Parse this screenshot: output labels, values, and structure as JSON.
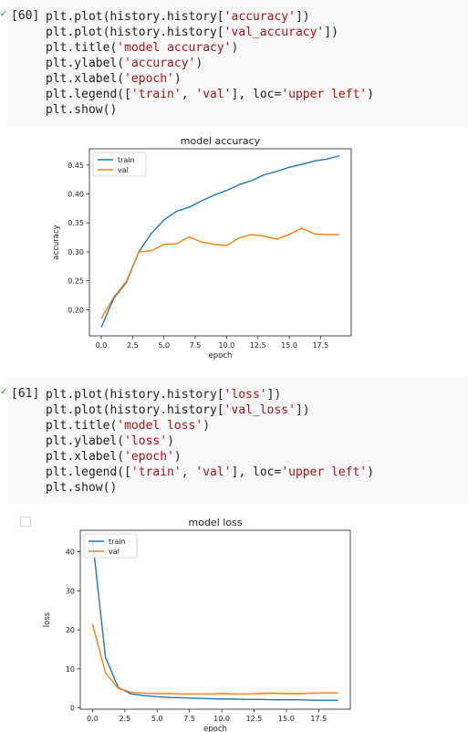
{
  "cells": [
    {
      "prompt": "[60]",
      "code_lines": [
        [
          {
            "t": "plt.plot(history.history["
          },
          {
            "t": "'accuracy'",
            "s": 1
          },
          {
            "t": "])"
          }
        ],
        [
          {
            "t": "plt.plot(history.history["
          },
          {
            "t": "'val_accuracy'",
            "s": 1
          },
          {
            "t": "])"
          }
        ],
        [
          {
            "t": "plt.title("
          },
          {
            "t": "'model accuracy'",
            "s": 1
          },
          {
            "t": ")"
          }
        ],
        [
          {
            "t": "plt.ylabel("
          },
          {
            "t": "'accuracy'",
            "s": 1
          },
          {
            "t": ")"
          }
        ],
        [
          {
            "t": "plt.xlabel("
          },
          {
            "t": "'epoch'",
            "s": 1
          },
          {
            "t": ")"
          }
        ],
        [
          {
            "t": "plt.legend(["
          },
          {
            "t": "'train'",
            "s": 1
          },
          {
            "t": ", "
          },
          {
            "t": "'val'",
            "s": 1
          },
          {
            "t": "], loc="
          },
          {
            "t": "'upper left'",
            "s": 1
          },
          {
            "t": ")"
          }
        ],
        [
          {
            "t": "plt.show()"
          }
        ]
      ]
    },
    {
      "prompt": "[61]",
      "code_lines": [
        [
          {
            "t": "plt.plot(history.history["
          },
          {
            "t": "'loss'",
            "s": 1
          },
          {
            "t": "])"
          }
        ],
        [
          {
            "t": "plt.plot(history.history["
          },
          {
            "t": "'val_loss'",
            "s": 1
          },
          {
            "t": "])"
          }
        ],
        [
          {
            "t": "plt.title("
          },
          {
            "t": "'model loss'",
            "s": 1
          },
          {
            "t": ")"
          }
        ],
        [
          {
            "t": "plt.ylabel("
          },
          {
            "t": "'loss'",
            "s": 1
          },
          {
            "t": ")"
          }
        ],
        [
          {
            "t": "plt.xlabel("
          },
          {
            "t": "'epoch'",
            "s": 1
          },
          {
            "t": ")"
          }
        ],
        [
          {
            "t": "plt.legend(["
          },
          {
            "t": "'train'",
            "s": 1
          },
          {
            "t": ", "
          },
          {
            "t": "'val'",
            "s": 1
          },
          {
            "t": "], loc="
          },
          {
            "t": "'upper left'",
            "s": 1
          },
          {
            "t": ")"
          }
        ],
        [
          {
            "t": "plt.show()"
          }
        ]
      ]
    }
  ],
  "chart_data": [
    {
      "type": "line",
      "title": "model accuracy",
      "xlabel": "epoch",
      "ylabel": "accuracy",
      "xlim": [
        -0.95,
        19.95
      ],
      "ylim": [
        0.155,
        0.478
      ],
      "xticks": [
        0.0,
        2.5,
        5.0,
        7.5,
        10.0,
        12.5,
        15.0,
        17.5
      ],
      "xtick_labels": [
        "0.0",
        "2.5",
        "5.0",
        "7.5",
        "10.0",
        "12.5",
        "15.0",
        "17.5"
      ],
      "yticks": [
        0.2,
        0.25,
        0.3,
        0.35,
        0.4,
        0.45
      ],
      "ytick_labels": [
        "0.20",
        "0.25",
        "0.30",
        "0.35",
        "0.40",
        "0.45"
      ],
      "x": [
        0,
        1,
        2,
        3,
        4,
        5,
        6,
        7,
        8,
        9,
        10,
        11,
        12,
        13,
        14,
        15,
        16,
        17,
        18,
        19
      ],
      "series": [
        {
          "name": "train",
          "color": "#1f77b4",
          "values": [
            0.17,
            0.22,
            0.247,
            0.3,
            0.332,
            0.355,
            0.37,
            0.377,
            0.388,
            0.398,
            0.406,
            0.416,
            0.423,
            0.433,
            0.439,
            0.446,
            0.451,
            0.457,
            0.46,
            0.466
          ]
        },
        {
          "name": "val",
          "color": "#ff7f0e",
          "values": [
            0.185,
            0.222,
            0.249,
            0.3,
            0.302,
            0.313,
            0.314,
            0.326,
            0.317,
            0.313,
            0.311,
            0.324,
            0.33,
            0.327,
            0.322,
            0.33,
            0.341,
            0.331,
            0.33,
            0.33
          ]
        }
      ],
      "legend": "upper left",
      "grid": false
    },
    {
      "type": "line",
      "title": "model loss",
      "xlabel": "epoch",
      "ylabel": "loss",
      "xlim": [
        -0.95,
        19.95
      ],
      "ylim": [
        -0.3,
        45.5
      ],
      "xticks": [
        0.0,
        2.5,
        5.0,
        7.5,
        10.0,
        12.5,
        15.0,
        17.5
      ],
      "xtick_labels": [
        "0.0",
        "2.5",
        "5.0",
        "7.5",
        "10.0",
        "12.5",
        "15.0",
        "17.5"
      ],
      "yticks": [
        0,
        10,
        20,
        30,
        40
      ],
      "ytick_labels": [
        "0",
        "10",
        "20",
        "30",
        "40"
      ],
      "x": [
        0,
        1,
        2,
        3,
        4,
        5,
        6,
        7,
        8,
        9,
        10,
        11,
        12,
        13,
        14,
        15,
        16,
        17,
        18,
        19
      ],
      "series": [
        {
          "name": "train",
          "color": "#1f77b4",
          "values": [
            43.0,
            13.0,
            5.2,
            3.6,
            3.2,
            2.9,
            2.7,
            2.6,
            2.5,
            2.4,
            2.3,
            2.3,
            2.2,
            2.2,
            2.1,
            2.1,
            2.1,
            2.0,
            2.0,
            2.0
          ]
        },
        {
          "name": "val",
          "color": "#ff7f0e",
          "values": [
            21.5,
            9.0,
            5.0,
            4.0,
            3.8,
            3.7,
            3.7,
            3.6,
            3.6,
            3.6,
            3.7,
            3.6,
            3.6,
            3.7,
            3.8,
            3.7,
            3.7,
            3.8,
            3.9,
            3.8
          ]
        }
      ],
      "legend": "upper left",
      "grid": false
    }
  ]
}
